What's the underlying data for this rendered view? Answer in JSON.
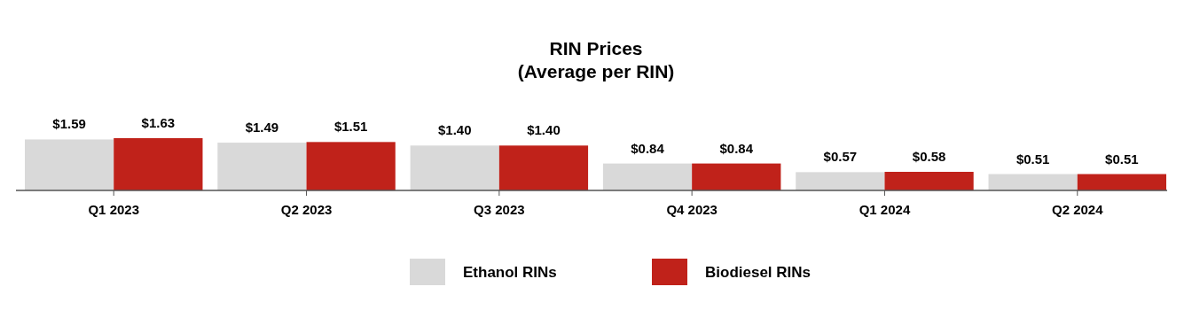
{
  "chart_data": {
    "type": "bar",
    "title": "RIN Prices",
    "subtitle": "(Average per RIN)",
    "categories": [
      "Q1 2023",
      "Q2 2023",
      "Q3 2023",
      "Q4 2023",
      "Q1 2024",
      "Q2 2024"
    ],
    "series": [
      {
        "name": "Ethanol RINs",
        "color": "#d9d9d9",
        "values": [
          1.59,
          1.49,
          1.4,
          0.84,
          0.57,
          0.51
        ],
        "value_labels": [
          "$1.59",
          "$1.49",
          "$1.40",
          "$0.84",
          "$0.57",
          "$0.51"
        ]
      },
      {
        "name": "Biodiesel RINs",
        "color": "#c0221a",
        "values": [
          1.63,
          1.51,
          1.4,
          0.84,
          0.58,
          0.51
        ],
        "value_labels": [
          "$1.63",
          "$1.51",
          "$1.40",
          "$0.84",
          "$0.58",
          "$0.51"
        ]
      }
    ],
    "legend": "bottom"
  }
}
